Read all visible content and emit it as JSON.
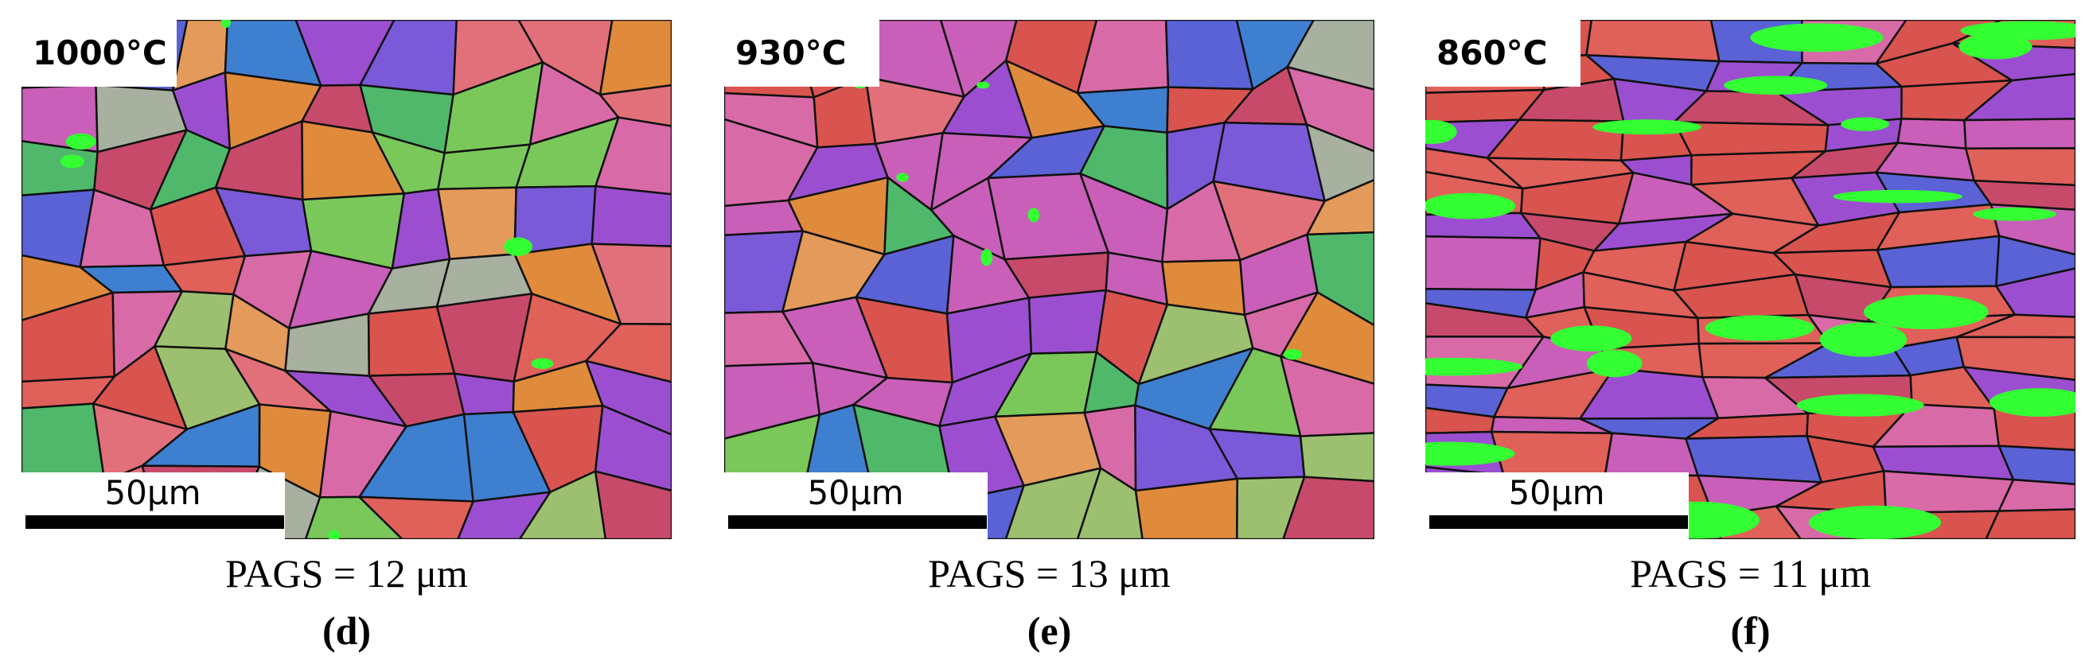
{
  "panels": [
    {
      "temperature": "1000°C",
      "scale_bar": "50μm",
      "caption": "PAGS = 12 μm",
      "label": "(d)"
    },
    {
      "temperature": "930°C",
      "scale_bar": "50μm",
      "caption": "PAGS = 13 μm",
      "label": "(e)"
    },
    {
      "temperature": "860°C",
      "scale_bar": "50μm",
      "caption": "PAGS = 11 μm",
      "label": "(f)"
    }
  ]
}
